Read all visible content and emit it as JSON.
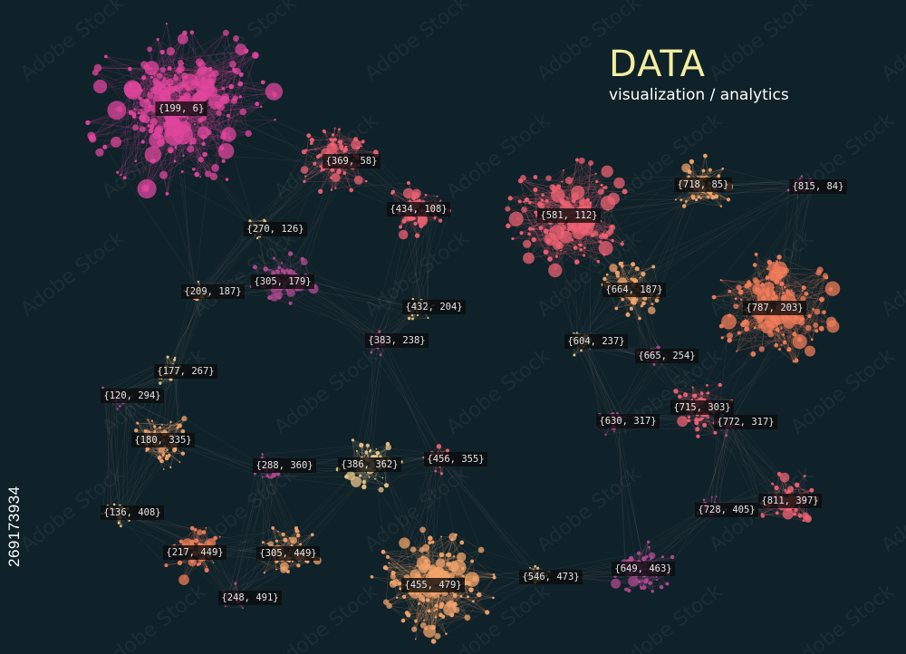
{
  "header": {
    "title": "DATA",
    "subtitle": "visualization / analytics"
  },
  "side_id": "269173934",
  "watermark": "Adobe Stock",
  "palette": {
    "background": "#0f2229",
    "magenta": "#e0459c",
    "rose": "#ef6172",
    "coral": "#f07c5a",
    "peach": "#f2a36a",
    "sand": "#e7c588",
    "purple": "#b04a8f",
    "label_bg": "#0b0b0b",
    "label_text": "#e6e6e6"
  },
  "clusters": [
    {
      "label": "{199, 6}",
      "color": "magenta",
      "size": "xl"
    },
    {
      "label": "{369, 58}",
      "color": "rose",
      "size": "m"
    },
    {
      "label": "{434, 108}",
      "color": "rose",
      "size": "s"
    },
    {
      "label": "{581, 112}",
      "color": "rose",
      "size": "l"
    },
    {
      "label": "{718, 85}",
      "color": "peach",
      "size": "s"
    },
    {
      "label": "{815, 84}",
      "color": "purple",
      "size": "xs"
    },
    {
      "label": "{270, 126}",
      "color": "sand",
      "size": "xs"
    },
    {
      "label": "{305, 179}",
      "color": "purple",
      "size": "s"
    },
    {
      "label": "{209, 187}",
      "color": "peach",
      "size": "xs"
    },
    {
      "label": "{432, 204}",
      "color": "sand",
      "size": "xs"
    },
    {
      "label": "{383, 238}",
      "color": "purple",
      "size": "xs"
    },
    {
      "label": "{664, 187}",
      "color": "peach",
      "size": "s"
    },
    {
      "label": "{787, 203}",
      "color": "coral",
      "size": "l"
    },
    {
      "label": "{604, 237}",
      "color": "sand",
      "size": "xs"
    },
    {
      "label": "{665, 254}",
      "color": "purple",
      "size": "xs"
    },
    {
      "label": "{177, 267}",
      "color": "sand",
      "size": "xs"
    },
    {
      "label": "{120, 294}",
      "color": "purple",
      "size": "xs"
    },
    {
      "label": "{715, 303}",
      "color": "rose",
      "size": "s"
    },
    {
      "label": "{630, 317}",
      "color": "purple",
      "size": "xs"
    },
    {
      "label": "{772, 317}",
      "color": "purple",
      "size": "xs"
    },
    {
      "label": "{180, 335}",
      "color": "peach",
      "size": "s"
    },
    {
      "label": "{288, 360}",
      "color": "purple",
      "size": "xs"
    },
    {
      "label": "{386, 362}",
      "color": "sand",
      "size": "s"
    },
    {
      "label": "{456, 355}",
      "color": "rose",
      "size": "xs"
    },
    {
      "label": "{811, 397}",
      "color": "rose",
      "size": "s"
    },
    {
      "label": "{136, 408}",
      "color": "sand",
      "size": "xs"
    },
    {
      "label": "{728, 405}",
      "color": "purple",
      "size": "xs"
    },
    {
      "label": "{217, 449}",
      "color": "coral",
      "size": "s"
    },
    {
      "label": "{305, 449}",
      "color": "peach",
      "size": "s"
    },
    {
      "label": "{546, 473}",
      "color": "sand",
      "size": "xs"
    },
    {
      "label": "{649, 463}",
      "color": "purple",
      "size": "s"
    },
    {
      "label": "{248, 491}",
      "color": "purple",
      "size": "xs"
    },
    {
      "label": "{455, 479}",
      "color": "peach",
      "size": "l"
    }
  ]
}
